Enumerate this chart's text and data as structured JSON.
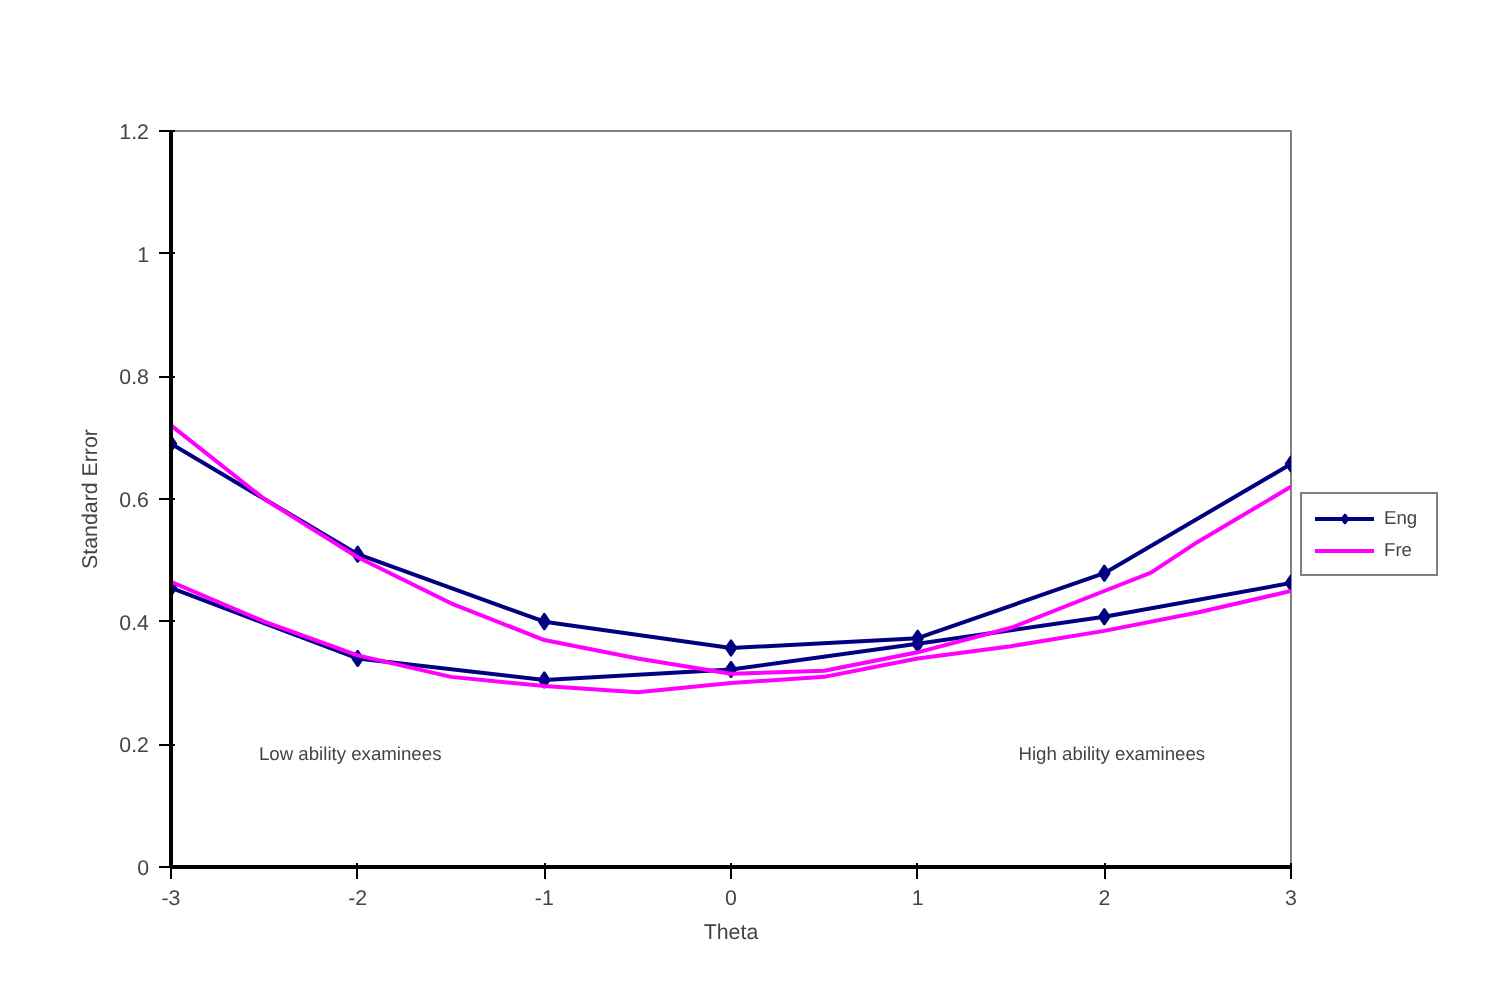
{
  "chart_data": {
    "type": "line",
    "xlabel": "Theta",
    "ylabel": "Standard Error",
    "xlim": [
      -3,
      3
    ],
    "ylim": [
      0,
      1.2
    ],
    "xticks": [
      -3,
      -2,
      -1,
      0,
      1,
      2,
      3
    ],
    "yticks": [
      0,
      0.2,
      0.4,
      0.6,
      0.8,
      1,
      1.2
    ],
    "grid": false,
    "legend": "right",
    "annotations": [
      "Low ability examinees",
      "High ability examinees"
    ],
    "series": [
      {
        "name": "Eng",
        "color": "#000080",
        "marker": "diamond",
        "x": [
          -3,
          -2,
          -1,
          0,
          1,
          2,
          3
        ],
        "values": [
          0.69,
          0.51,
          0.4,
          0.357,
          0.373,
          0.479,
          0.657
        ]
      },
      {
        "color": "#000080",
        "marker": "diamond",
        "x": [
          -3,
          -2,
          -1,
          0,
          1,
          2,
          3
        ],
        "values": [
          0.455,
          0.34,
          0.305,
          0.322,
          0.364,
          0.408,
          0.463
        ]
      },
      {
        "name": "Fre",
        "color": "#ff00ff",
        "marker": "none",
        "x": [
          -3,
          -2.5,
          -2,
          -1.5,
          -1,
          -0.5,
          0,
          0.5,
          1,
          1.5,
          2,
          2.25,
          2.5,
          3
        ],
        "values": [
          0.72,
          0.6,
          0.505,
          0.43,
          0.37,
          0.34,
          0.315,
          0.32,
          0.35,
          0.39,
          0.45,
          0.48,
          0.53,
          0.62
        ]
      },
      {
        "color": "#ff00ff",
        "marker": "none",
        "x": [
          -3,
          -2.5,
          -2,
          -1.5,
          -1,
          -0.5,
          0,
          0.5,
          1,
          1.5,
          2,
          2.5,
          3
        ],
        "values": [
          0.465,
          0.4,
          0.345,
          0.31,
          0.295,
          0.285,
          0.3,
          0.31,
          0.34,
          0.36,
          0.385,
          0.415,
          0.45
        ]
      }
    ]
  }
}
